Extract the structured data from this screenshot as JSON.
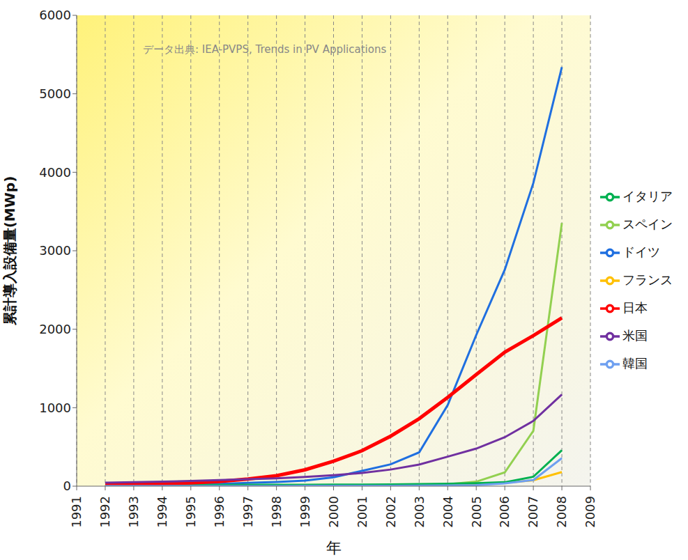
{
  "chart_data": {
    "type": "line",
    "x_label": "年",
    "y_label": "累計導入設備量(MWp)",
    "annotation": "データ出典: IEA-PVPS, Trends in PV Applications",
    "x": [
      1992,
      1993,
      1994,
      1995,
      1996,
      1997,
      1998,
      1999,
      2000,
      2001,
      2002,
      2003,
      2004,
      2005,
      2006,
      2007,
      2008
    ],
    "series": [
      {
        "name": "ドイツ",
        "color": "#1f6fe0",
        "line_style": "solid",
        "values": [
          6,
          9,
          12,
          18,
          28,
          42,
          54,
          70,
          114,
          195,
          278,
          431,
          1034,
          1926,
          2759,
          3862,
          5340
        ]
      },
      {
        "name": "スペイン",
        "color": "#92d050",
        "line_style": "solid",
        "values": [
          4,
          5,
          6,
          7,
          7,
          8,
          9,
          9,
          10,
          12,
          15,
          20,
          25,
          57,
          175,
          705,
          3354
        ]
      },
      {
        "name": "フランス",
        "color": "#ffc000",
        "line_style": "solid",
        "values": [
          2,
          3,
          3,
          4,
          4,
          5,
          6,
          7,
          8,
          9,
          11,
          13,
          16,
          26,
          44,
          75,
          180
        ]
      },
      {
        "name": "イタリア",
        "color": "#00b050",
        "line_style": "solid",
        "values": [
          9,
          12,
          14,
          16,
          16,
          17,
          18,
          18,
          19,
          20,
          22,
          26,
          31,
          37,
          50,
          120,
          458
        ]
      },
      {
        "name": "日本",
        "color": "#ff0000",
        "line_style": "thick",
        "values": [
          19,
          24,
          31,
          43,
          60,
          91,
          133,
          209,
          318,
          452,
          637,
          860,
          1132,
          1422,
          1708,
          1919,
          2144
        ]
      },
      {
        "name": "韓国",
        "color": "#6fa0f0",
        "line_style": "solid",
        "values": [
          2,
          2,
          2,
          3,
          3,
          3,
          3,
          4,
          4,
          5,
          5,
          6,
          9,
          14,
          36,
          78,
          357
        ]
      },
      {
        "name": "米国",
        "color": "#7030a0",
        "line_style": "solid",
        "values": [
          44,
          51,
          58,
          67,
          77,
          88,
          100,
          117,
          139,
          168,
          212,
          275,
          376,
          479,
          624,
          831,
          1169
        ]
      }
    ],
    "xlim": [
      1991,
      2009
    ],
    "xticks": [
      1991,
      1992,
      1993,
      1994,
      1995,
      1996,
      1997,
      1998,
      1999,
      2000,
      2001,
      2002,
      2003,
      2004,
      2005,
      2006,
      2007,
      2008,
      2009
    ],
    "ylim": [
      0,
      6000
    ],
    "yticks": [
      0,
      1000,
      2000,
      3000,
      4000,
      5000,
      6000
    ],
    "grid": true,
    "legend": "right"
  }
}
